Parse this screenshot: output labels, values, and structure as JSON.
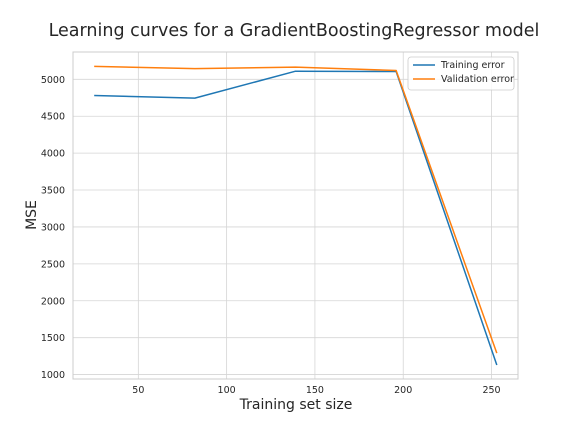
{
  "chart_data": {
    "type": "line",
    "title": "Learning curves for a GradientBoostingRegressor model",
    "xlabel": "Training set size",
    "ylabel": "MSE",
    "xlim": [
      13,
      265
    ],
    "ylim": [
      940,
      5370
    ],
    "x_ticks": [
      50,
      100,
      150,
      200,
      250
    ],
    "y_ticks": [
      1000,
      1500,
      2000,
      2500,
      3000,
      3500,
      4000,
      4500,
      5000
    ],
    "grid": true,
    "legend_position": "top-right",
    "series": [
      {
        "name": "Training error",
        "color": "#1f77b4",
        "x": [
          25,
          82,
          139,
          196,
          253
        ],
        "y": [
          4780,
          4745,
          5110,
          5105,
          1130
        ]
      },
      {
        "name": "Validation error",
        "color": "#ff7f0e",
        "x": [
          25,
          82,
          139,
          196,
          253
        ],
        "y": [
          5175,
          5145,
          5165,
          5120,
          1290
        ]
      }
    ]
  }
}
